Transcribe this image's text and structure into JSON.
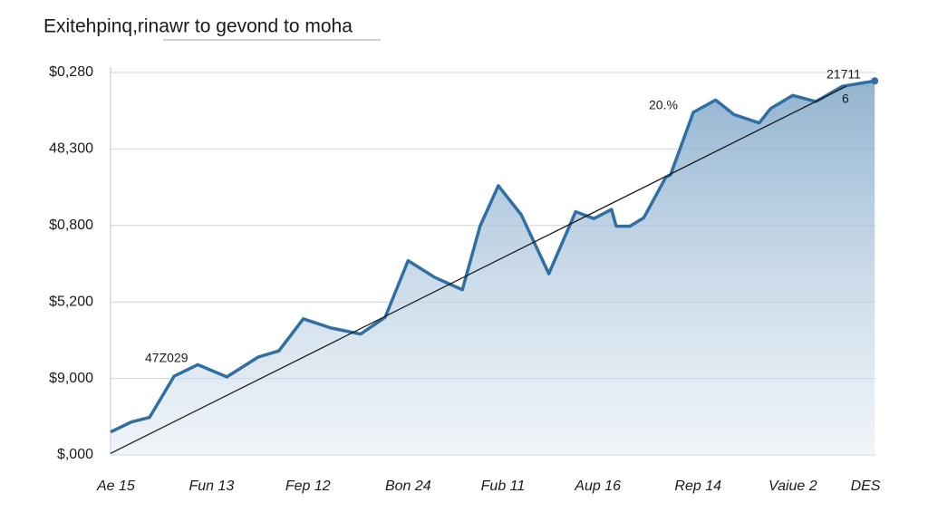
{
  "chart_data": {
    "type": "line",
    "title": "Exitehpinq,rinawr to gevond to moha",
    "xlim": [
      0,
      100
    ],
    "xticks": [
      {
        "value": 0.7,
        "label": "Ae 15"
      },
      {
        "value": 13.2,
        "label": "Fun 13"
      },
      {
        "value": 25.8,
        "label": "Fep 12"
      },
      {
        "value": 38.9,
        "label": "Bon 24"
      },
      {
        "value": 51.3,
        "label": "Fub 11"
      },
      {
        "value": 63.7,
        "label": "Aup 16"
      },
      {
        "value": 76.8,
        "label": "Rep 14"
      },
      {
        "value": 89.2,
        "label": "Vaiue 2"
      },
      {
        "value": 98.7,
        "label": "DES"
      }
    ],
    "ylim": [
      0,
      5
    ],
    "yticks": [
      {
        "value": 0,
        "label": "$,000"
      },
      {
        "value": 1,
        "label": "$9,000"
      },
      {
        "value": 2,
        "label": "$5,200"
      },
      {
        "value": 3,
        "label": "$0,800"
      },
      {
        "value": 4,
        "label": "48,300"
      },
      {
        "value": 5,
        "label": "$0,280"
      }
    ],
    "grid": true,
    "series": [
      {
        "color": "#2f6fa3",
        "fill": true,
        "x": [
          0,
          2.7,
          5.1,
          8.3,
          11.4,
          15.2,
          19.3,
          22.0,
          25.2,
          28.8,
          32.7,
          35.9,
          38.9,
          42.4,
          46.0,
          48.3,
          50.7,
          53.7,
          57.3,
          60.8,
          63.2,
          65.5,
          66.1,
          67.9,
          69.7,
          72.6,
          73.2,
          76.2,
          79.1,
          81.5,
          84.8,
          86.3,
          89.2,
          92.2,
          95.7,
          99.9
        ],
        "values": [
          0.3,
          0.43,
          0.49,
          1.03,
          1.18,
          1.02,
          1.28,
          1.36,
          1.78,
          1.66,
          1.58,
          1.8,
          2.54,
          2.32,
          2.16,
          2.99,
          3.52,
          3.14,
          2.37,
          3.18,
          3.09,
          3.21,
          2.99,
          2.99,
          3.1,
          3.63,
          3.66,
          4.48,
          4.64,
          4.45,
          4.34,
          4.53,
          4.7,
          4.62,
          4.82,
          4.89
        ]
      },
      {
        "color": "#1a1a1a",
        "fill": false,
        "x": [
          0,
          96.2
        ],
        "values": [
          0.02,
          4.82
        ]
      }
    ],
    "annotations": [
      "47Z029",
      "20.%",
      "21711",
      "6"
    ]
  }
}
